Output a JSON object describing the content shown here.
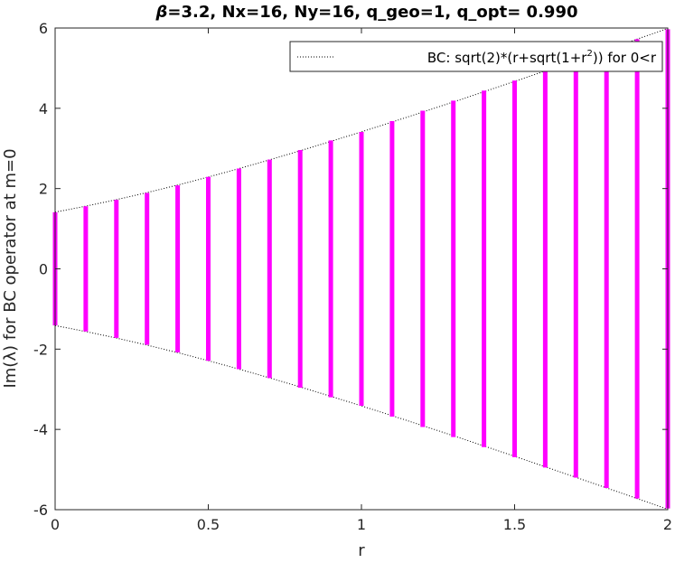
{
  "chart_data": {
    "type": "scatter",
    "title": {
      "beta_symbol": "β",
      "rest": "=3.2, Nx=16, Ny=16, q_geo=1, q_opt= 0.990"
    },
    "xlabel": "r",
    "ylabel": "Im(λ) for BC operator at m=0",
    "xlim": [
      0,
      2
    ],
    "ylim": [
      -6,
      6
    ],
    "xticks": [
      0,
      0.5,
      1,
      1.5,
      2
    ],
    "xtick_labels": [
      "0",
      "0.5",
      "1",
      "1.5",
      "2"
    ],
    "yticks": [
      -6,
      -4,
      -2,
      0,
      2,
      4,
      6
    ],
    "ytick_labels": [
      "-6",
      "-4",
      "-2",
      "0",
      "2",
      "4",
      "6"
    ],
    "grid": false,
    "legend": {
      "placement": "top-right",
      "text_prefix": "BC: sqrt(2)*(r+sqrt(1+r",
      "superscript": "2",
      "text_suffix": ")) for 0<r"
    },
    "series": [
      {
        "role": "eigenvalues",
        "color": "#ff00ff",
        "x": [
          0,
          0.1,
          0.2,
          0.3,
          0.4,
          0.5,
          0.6,
          0.7,
          0.8,
          0.9,
          1.0,
          1.1,
          1.2,
          1.3,
          1.4,
          1.5,
          1.6,
          1.7,
          1.8,
          1.9,
          2.0
        ],
        "ymax": [
          1.41,
          1.56,
          1.72,
          1.89,
          2.08,
          2.29,
          2.5,
          2.72,
          2.96,
          3.2,
          3.41,
          3.68,
          3.94,
          4.19,
          4.44,
          4.69,
          4.95,
          5.2,
          5.46,
          5.72,
          5.97
        ],
        "ymin": [
          -1.41,
          -1.56,
          -1.72,
          -1.89,
          -2.08,
          -2.29,
          -2.5,
          -2.72,
          -2.96,
          -3.2,
          -3.41,
          -3.68,
          -3.94,
          -4.19,
          -4.44,
          -4.69,
          -4.95,
          -5.2,
          -5.46,
          -5.72,
          -5.97
        ]
      },
      {
        "role": "bound",
        "color": "#000000",
        "linestyle": "dotted",
        "formula": "±sqrt(2)*(r+sqrt(1+r^2))",
        "x_range": [
          0,
          2
        ]
      }
    ]
  }
}
